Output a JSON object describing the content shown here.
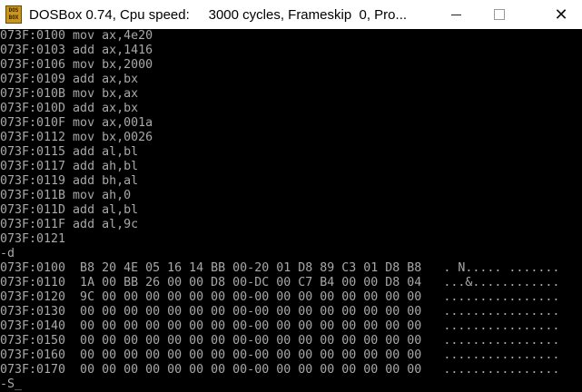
{
  "window": {
    "title": "DOSBox 0.74, Cpu speed:     3000 cycles, Frameskip  0, Pro...",
    "icon_text": "DOS BOX",
    "controls": [
      "minimize-icon",
      "maximize-icon",
      "close-icon"
    ],
    "close_glyph": "✕"
  },
  "terminal": {
    "lines": [
      "073F:0100 mov ax,4e20",
      "073F:0103 add ax,1416",
      "073F:0106 mov bx,2000",
      "073F:0109 add ax,bx",
      "073F:010B mov bx,ax",
      "073F:010D add ax,bx",
      "073F:010F mov ax,001a",
      "073F:0112 mov bx,0026",
      "073F:0115 add al,bl",
      "073F:0117 add ah,bl",
      "073F:0119 add bh,al",
      "073F:011B mov ah,0",
      "073F:011D add al,bl",
      "073F:011F add al,9c",
      "073F:0121",
      "-d",
      "073F:0100  B8 20 4E 05 16 14 BB 00-20 01 D8 89 C3 01 D8 B8   . N..... .......",
      "073F:0110  1A 00 BB 26 00 00 D8 00-DC 00 C7 B4 00 00 D8 04   ...&............",
      "073F:0120  9C 00 00 00 00 00 00 00-00 00 00 00 00 00 00 00   ................",
      "073F:0130  00 00 00 00 00 00 00 00-00 00 00 00 00 00 00 00   ................",
      "073F:0140  00 00 00 00 00 00 00 00-00 00 00 00 00 00 00 00   ................",
      "073F:0150  00 00 00 00 00 00 00 00-00 00 00 00 00 00 00 00   ................",
      "073F:0160  00 00 00 00 00 00 00 00-00 00 00 00 00 00 00 00   ................",
      "073F:0170  00 00 00 00 00 00 00 00-00 00 00 00 00 00 00 00   ................",
      "-S_"
    ]
  }
}
